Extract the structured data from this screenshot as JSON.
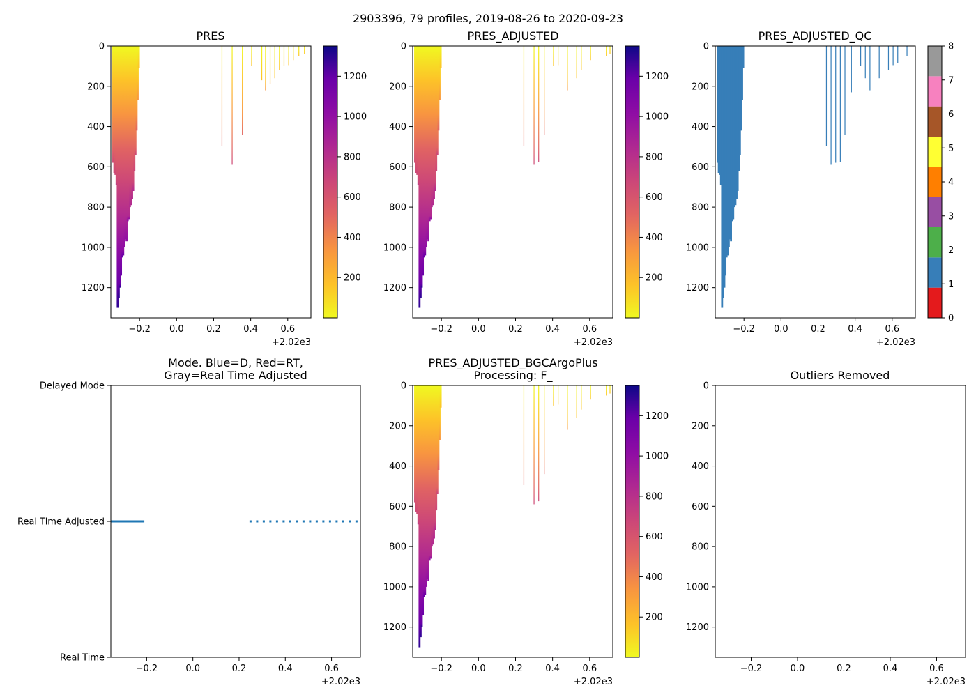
{
  "figure": {
    "title": "2903396, 79 profiles, 2019-08-26 to 2020-09-23",
    "x_offset_label": "+2.02e3",
    "x_ticks": [
      -0.2,
      0.0,
      0.2,
      0.4,
      0.6
    ],
    "x_tick_labels": [
      "−0.2",
      "0.0",
      "0.2",
      "0.4",
      "0.6"
    ],
    "x_range": [
      -0.355,
      0.725
    ],
    "pressure_ticks": [
      0,
      200,
      400,
      600,
      800,
      1000,
      1200
    ],
    "pressure_range": [
      0,
      1350
    ]
  },
  "colorbars": {
    "pressure": {
      "min": 0,
      "max": 1350,
      "ticks": [
        200,
        400,
        600,
        800,
        1000,
        1200
      ],
      "colormap": "plasma_r"
    },
    "qc": {
      "ticks": [
        0,
        1,
        2,
        3,
        4,
        5,
        6,
        7,
        8
      ],
      "colors": [
        "#e41a1c",
        "#377eb8",
        "#4daf4a",
        "#984ea3",
        "#ff7f00",
        "#ffff33",
        "#a65628",
        "#f781bf",
        "#999999"
      ]
    }
  },
  "chart_data": [
    {
      "id": "pres",
      "type": "profile-section",
      "title": "PRES",
      "value_colormap": "plasma_r",
      "profiles": [
        {
          "x": -0.342,
          "max": 580
        },
        {
          "x": -0.336,
          "max": 630
        },
        {
          "x": -0.33,
          "max": 640
        },
        {
          "x": -0.324,
          "max": 690
        },
        {
          "x": -0.318,
          "max": 1300
        },
        {
          "x": -0.312,
          "max": 1250
        },
        {
          "x": -0.306,
          "max": 1200
        },
        {
          "x": -0.3,
          "max": 1140
        },
        {
          "x": -0.294,
          "max": 1050
        },
        {
          "x": -0.288,
          "max": 1040
        },
        {
          "x": -0.282,
          "max": 1000
        },
        {
          "x": -0.276,
          "max": 960
        },
        {
          "x": -0.27,
          "max": 970
        },
        {
          "x": -0.264,
          "max": 870
        },
        {
          "x": -0.258,
          "max": 860
        },
        {
          "x": -0.252,
          "max": 800
        },
        {
          "x": -0.246,
          "max": 790
        },
        {
          "x": -0.24,
          "max": 760
        },
        {
          "x": -0.234,
          "max": 720
        },
        {
          "x": -0.228,
          "max": 620
        },
        {
          "x": -0.222,
          "max": 540
        },
        {
          "x": -0.216,
          "max": 420
        },
        {
          "x": -0.21,
          "max": 270
        },
        {
          "x": -0.204,
          "max": 110
        },
        {
          "x": 0.245,
          "max": 495
        },
        {
          "x": 0.3,
          "max": 590
        },
        {
          "x": 0.355,
          "max": 440
        },
        {
          "x": 0.405,
          "max": 100
        },
        {
          "x": 0.46,
          "max": 170
        },
        {
          "x": 0.48,
          "max": 220
        },
        {
          "x": 0.505,
          "max": 190
        },
        {
          "x": 0.53,
          "max": 160
        },
        {
          "x": 0.555,
          "max": 120
        },
        {
          "x": 0.58,
          "max": 100
        },
        {
          "x": 0.605,
          "max": 95
        },
        {
          "x": 0.63,
          "max": 70
        },
        {
          "x": 0.66,
          "max": 50
        },
        {
          "x": 0.69,
          "max": 40
        }
      ]
    },
    {
      "id": "pres_adj",
      "type": "profile-section",
      "title": "PRES_ADJUSTED",
      "value_colormap": "plasma_r",
      "profiles": [
        {
          "x": -0.342,
          "max": 580
        },
        {
          "x": -0.336,
          "max": 630
        },
        {
          "x": -0.33,
          "max": 640
        },
        {
          "x": -0.324,
          "max": 690
        },
        {
          "x": -0.318,
          "max": 1300
        },
        {
          "x": -0.312,
          "max": 1250
        },
        {
          "x": -0.306,
          "max": 1200
        },
        {
          "x": -0.3,
          "max": 1140
        },
        {
          "x": -0.294,
          "max": 1050
        },
        {
          "x": -0.288,
          "max": 1040
        },
        {
          "x": -0.282,
          "max": 1000
        },
        {
          "x": -0.276,
          "max": 960
        },
        {
          "x": -0.27,
          "max": 970
        },
        {
          "x": -0.264,
          "max": 870
        },
        {
          "x": -0.258,
          "max": 860
        },
        {
          "x": -0.252,
          "max": 800
        },
        {
          "x": -0.246,
          "max": 790
        },
        {
          "x": -0.24,
          "max": 760
        },
        {
          "x": -0.234,
          "max": 720
        },
        {
          "x": -0.228,
          "max": 620
        },
        {
          "x": -0.222,
          "max": 540
        },
        {
          "x": -0.216,
          "max": 420
        },
        {
          "x": -0.21,
          "max": 270
        },
        {
          "x": -0.204,
          "max": 110
        },
        {
          "x": 0.245,
          "max": 495
        },
        {
          "x": 0.3,
          "max": 590
        },
        {
          "x": 0.325,
          "max": 575
        },
        {
          "x": 0.355,
          "max": 440
        },
        {
          "x": 0.405,
          "max": 100
        },
        {
          "x": 0.43,
          "max": 95
        },
        {
          "x": 0.48,
          "max": 220
        },
        {
          "x": 0.53,
          "max": 160
        },
        {
          "x": 0.555,
          "max": 120
        },
        {
          "x": 0.605,
          "max": 70
        },
        {
          "x": 0.69,
          "max": 50
        },
        {
          "x": 0.71,
          "max": 40
        }
      ]
    },
    {
      "id": "pres_adj_qc",
      "type": "profile-section",
      "title": "PRES_ADJUSTED_QC",
      "value_colormap": "qc",
      "profiles": [
        {
          "x": -0.342,
          "max": 580
        },
        {
          "x": -0.336,
          "max": 630
        },
        {
          "x": -0.33,
          "max": 640
        },
        {
          "x": -0.324,
          "max": 690
        },
        {
          "x": -0.318,
          "max": 1300
        },
        {
          "x": -0.312,
          "max": 1250
        },
        {
          "x": -0.306,
          "max": 1200
        },
        {
          "x": -0.3,
          "max": 1140
        },
        {
          "x": -0.294,
          "max": 1050
        },
        {
          "x": -0.288,
          "max": 1040
        },
        {
          "x": -0.282,
          "max": 1000
        },
        {
          "x": -0.276,
          "max": 960
        },
        {
          "x": -0.27,
          "max": 970
        },
        {
          "x": -0.264,
          "max": 870
        },
        {
          "x": -0.258,
          "max": 860
        },
        {
          "x": -0.252,
          "max": 800
        },
        {
          "x": -0.246,
          "max": 790
        },
        {
          "x": -0.24,
          "max": 760
        },
        {
          "x": -0.234,
          "max": 720
        },
        {
          "x": -0.228,
          "max": 620
        },
        {
          "x": -0.222,
          "max": 540
        },
        {
          "x": -0.216,
          "max": 420
        },
        {
          "x": -0.21,
          "max": 270
        },
        {
          "x": -0.204,
          "max": 110
        },
        {
          "x": 0.245,
          "max": 495
        },
        {
          "x": 0.27,
          "max": 590
        },
        {
          "x": 0.295,
          "max": 580
        },
        {
          "x": 0.32,
          "max": 575
        },
        {
          "x": 0.345,
          "max": 440
        },
        {
          "x": 0.38,
          "max": 230
        },
        {
          "x": 0.43,
          "max": 100
        },
        {
          "x": 0.455,
          "max": 160
        },
        {
          "x": 0.48,
          "max": 220
        },
        {
          "x": 0.53,
          "max": 160
        },
        {
          "x": 0.58,
          "max": 120
        },
        {
          "x": 0.605,
          "max": 95
        },
        {
          "x": 0.63,
          "max": 85
        },
        {
          "x": 0.68,
          "max": 50
        }
      ]
    },
    {
      "id": "mode",
      "type": "line",
      "title_line1": "Mode. Blue=D, Red=RT,",
      "title_line2": "Gray=Real Time Adjusted",
      "y_tick_labels": [
        "Delayed Mode",
        "Real Time Adjusted",
        "Real Time"
      ],
      "y_tick_values": [
        1,
        0.5,
        0
      ],
      "series": [
        {
          "name": "mode",
          "level": 0.5,
          "solid_x": [
            -0.355,
            -0.21
          ],
          "dotted_x": [
            0.245,
            0.725
          ]
        }
      ]
    },
    {
      "id": "pres_bgc",
      "type": "profile-section",
      "title_line1": "PRES_ADJUSTED_BGCArgoPlus",
      "title_line2": "Processing: F_",
      "value_colormap": "plasma_r",
      "profiles": [
        {
          "x": -0.342,
          "max": 580
        },
        {
          "x": -0.336,
          "max": 630
        },
        {
          "x": -0.33,
          "max": 640
        },
        {
          "x": -0.324,
          "max": 690
        },
        {
          "x": -0.318,
          "max": 1300
        },
        {
          "x": -0.312,
          "max": 1250
        },
        {
          "x": -0.306,
          "max": 1200
        },
        {
          "x": -0.3,
          "max": 1140
        },
        {
          "x": -0.294,
          "max": 1050
        },
        {
          "x": -0.288,
          "max": 1040
        },
        {
          "x": -0.282,
          "max": 1000
        },
        {
          "x": -0.276,
          "max": 960
        },
        {
          "x": -0.27,
          "max": 970
        },
        {
          "x": -0.264,
          "max": 870
        },
        {
          "x": -0.258,
          "max": 860
        },
        {
          "x": -0.252,
          "max": 800
        },
        {
          "x": -0.246,
          "max": 790
        },
        {
          "x": -0.24,
          "max": 760
        },
        {
          "x": -0.234,
          "max": 720
        },
        {
          "x": -0.228,
          "max": 620
        },
        {
          "x": -0.222,
          "max": 540
        },
        {
          "x": -0.216,
          "max": 420
        },
        {
          "x": -0.21,
          "max": 270
        },
        {
          "x": -0.204,
          "max": 110
        },
        {
          "x": 0.245,
          "max": 495
        },
        {
          "x": 0.3,
          "max": 590
        },
        {
          "x": 0.325,
          "max": 575
        },
        {
          "x": 0.355,
          "max": 440
        },
        {
          "x": 0.405,
          "max": 100
        },
        {
          "x": 0.43,
          "max": 95
        },
        {
          "x": 0.48,
          "max": 220
        },
        {
          "x": 0.53,
          "max": 160
        },
        {
          "x": 0.555,
          "max": 120
        },
        {
          "x": 0.605,
          "max": 70
        },
        {
          "x": 0.69,
          "max": 50
        },
        {
          "x": 0.71,
          "max": 40
        }
      ]
    },
    {
      "id": "outliers",
      "type": "scatter",
      "title": "Outliers Removed",
      "points": []
    }
  ]
}
